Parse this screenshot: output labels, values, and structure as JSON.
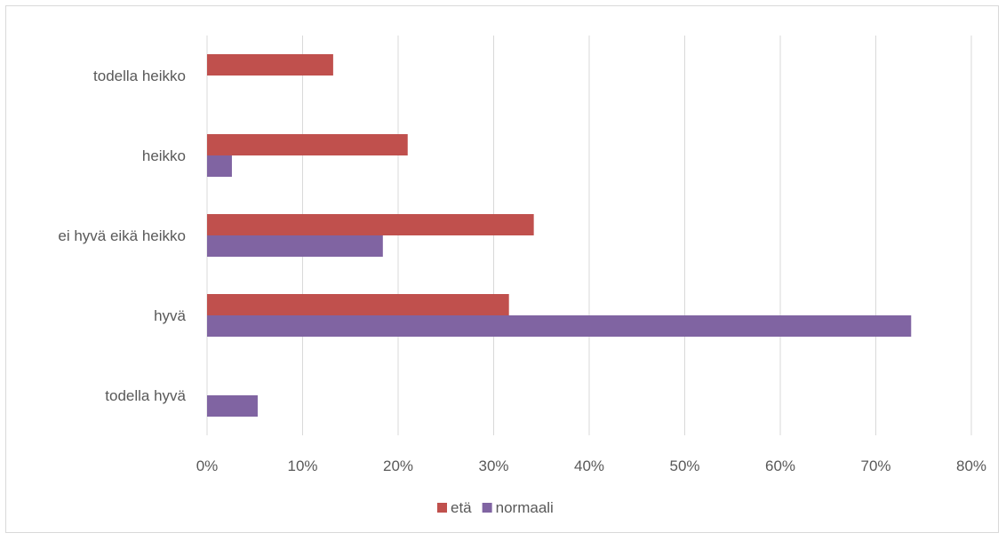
{
  "chart_data": {
    "type": "bar",
    "orientation": "horizontal",
    "categories": [
      "todella heikko",
      "heikko",
      "ei hyvä eikä heikko",
      "hyvä",
      "todella hyvä"
    ],
    "series": [
      {
        "name": "etä",
        "color": "#c0504d",
        "values": [
          13.2,
          21.0,
          34.2,
          31.6,
          0
        ]
      },
      {
        "name": "normaali",
        "color": "#8064a2",
        "values": [
          0,
          2.6,
          18.4,
          73.7,
          5.3
        ]
      }
    ],
    "xlim": [
      0,
      80
    ],
    "xticks": [
      0,
      10,
      20,
      30,
      40,
      50,
      60,
      70,
      80
    ],
    "xtick_labels": [
      "0%",
      "10%",
      "20%",
      "30%",
      "40%",
      "50%",
      "60%",
      "70%",
      "80%"
    ],
    "grid": true,
    "legend_position": "bottom"
  }
}
